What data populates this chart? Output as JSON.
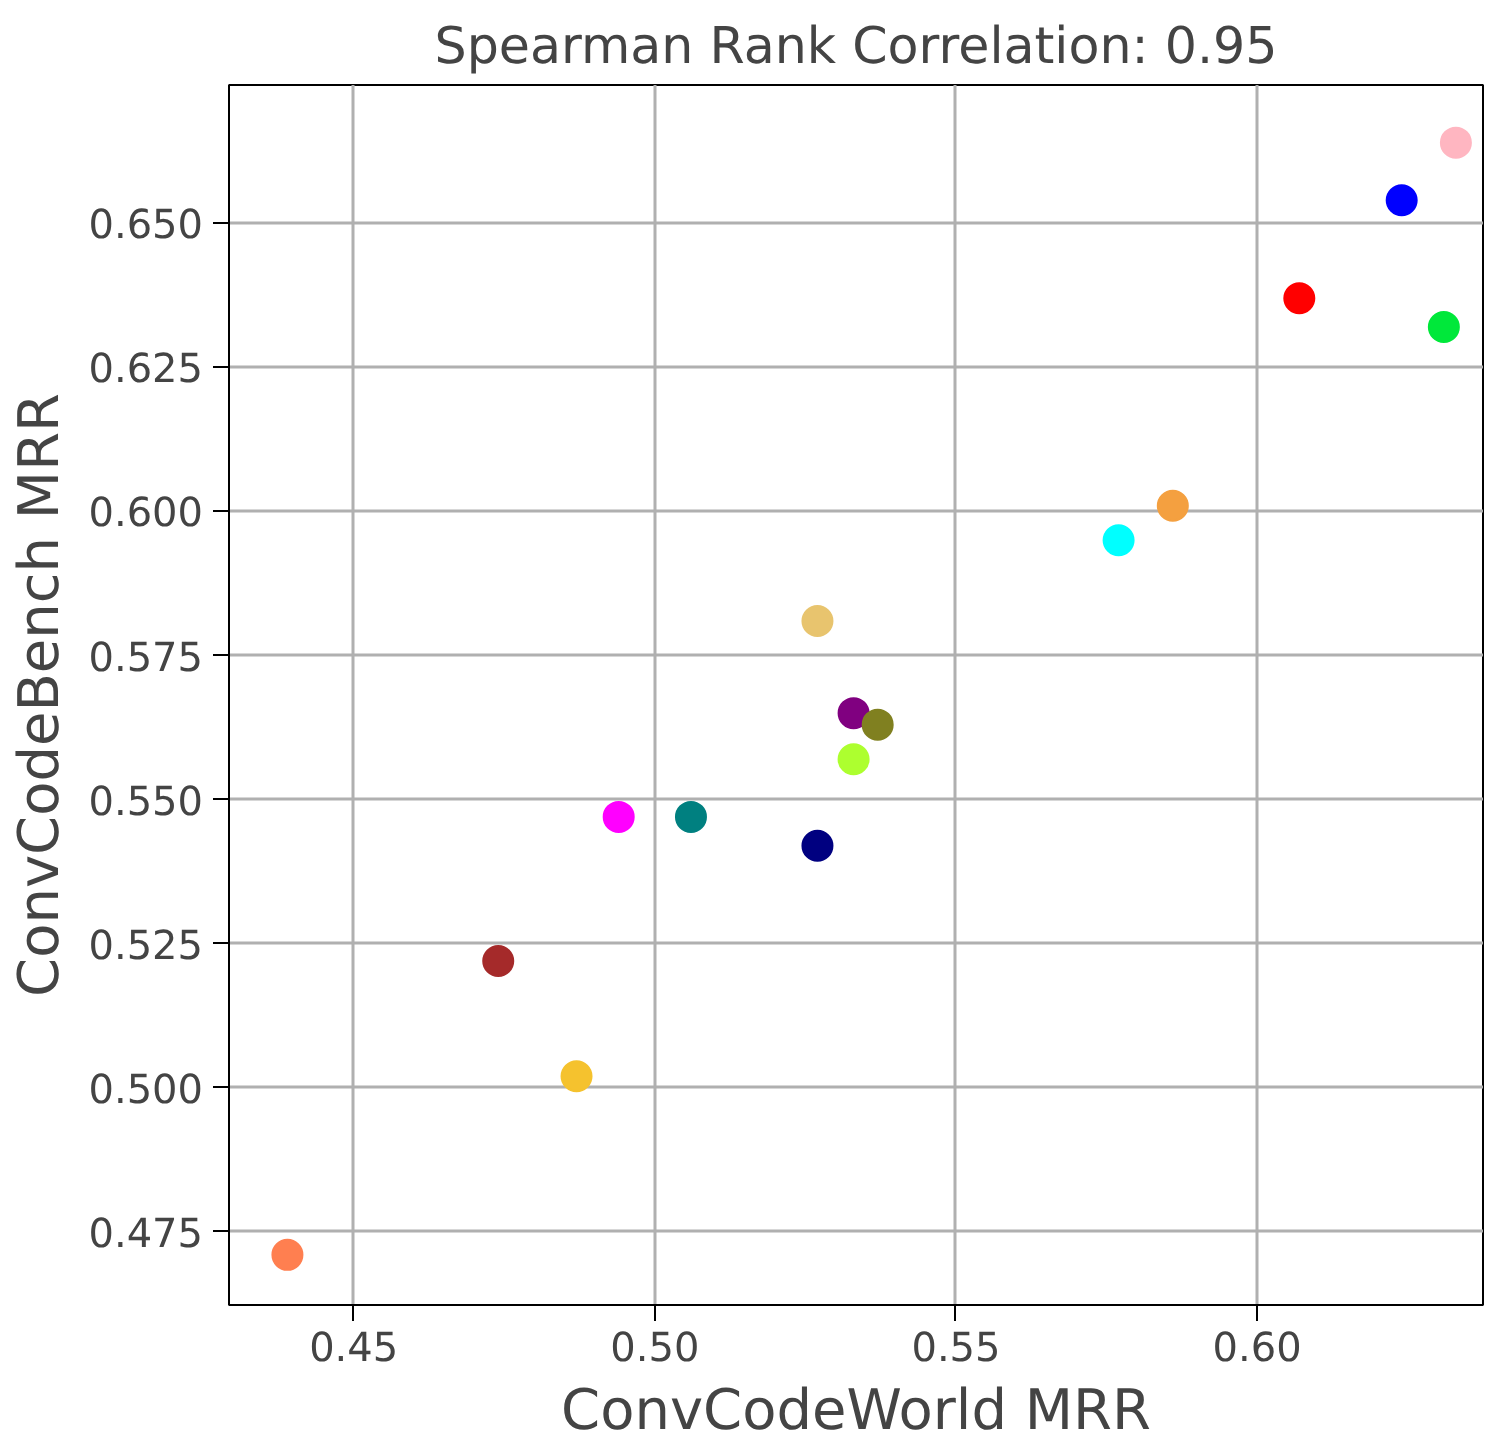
{
  "chart_data": {
    "type": "scatter",
    "title": "Spearman Rank Correlation: 0.95",
    "xlabel": "ConvCodeWorld MRR",
    "ylabel": "ConvCodeBench MRR",
    "x": [
      0.439,
      0.474,
      0.487,
      0.494,
      0.506,
      0.527,
      0.527,
      0.533,
      0.537,
      0.533,
      0.577,
      0.586,
      0.607,
      0.631,
      0.624,
      0.633
    ],
    "values": [
      0.471,
      0.522,
      0.502,
      0.547,
      0.547,
      0.542,
      0.581,
      0.565,
      0.563,
      0.557,
      0.595,
      0.601,
      0.637,
      0.632,
      0.654,
      0.664
    ],
    "colors": [
      "#ff7f50",
      "#a52a2a",
      "#f5c22e",
      "#ff00ff",
      "#008080",
      "#000080",
      "#e8c46e",
      "#800080",
      "#808020",
      "#adff2f",
      "#00ffff",
      "#f4a040",
      "#ff0000",
      "#00e83a",
      "#0000ff",
      "#ffb6c1"
    ],
    "marker": "circle",
    "xlim": [
      0.4293,
      0.6375
    ],
    "ylim": [
      0.4623,
      0.674
    ],
    "xticks": [
      {
        "value": 0.45,
        "label": "0.45"
      },
      {
        "value": 0.5,
        "label": "0.50"
      },
      {
        "value": 0.55,
        "label": "0.55"
      },
      {
        "value": 0.6,
        "label": "0.60"
      }
    ],
    "yticks": [
      {
        "value": 0.475,
        "label": "0.475"
      },
      {
        "value": 0.5,
        "label": "0.500"
      },
      {
        "value": 0.525,
        "label": "0.525"
      },
      {
        "value": 0.55,
        "label": "0.550"
      },
      {
        "value": 0.575,
        "label": "0.575"
      },
      {
        "value": 0.6,
        "label": "0.600"
      },
      {
        "value": 0.625,
        "label": "0.625"
      },
      {
        "value": 0.65,
        "label": "0.650"
      }
    ],
    "grid": true
  }
}
